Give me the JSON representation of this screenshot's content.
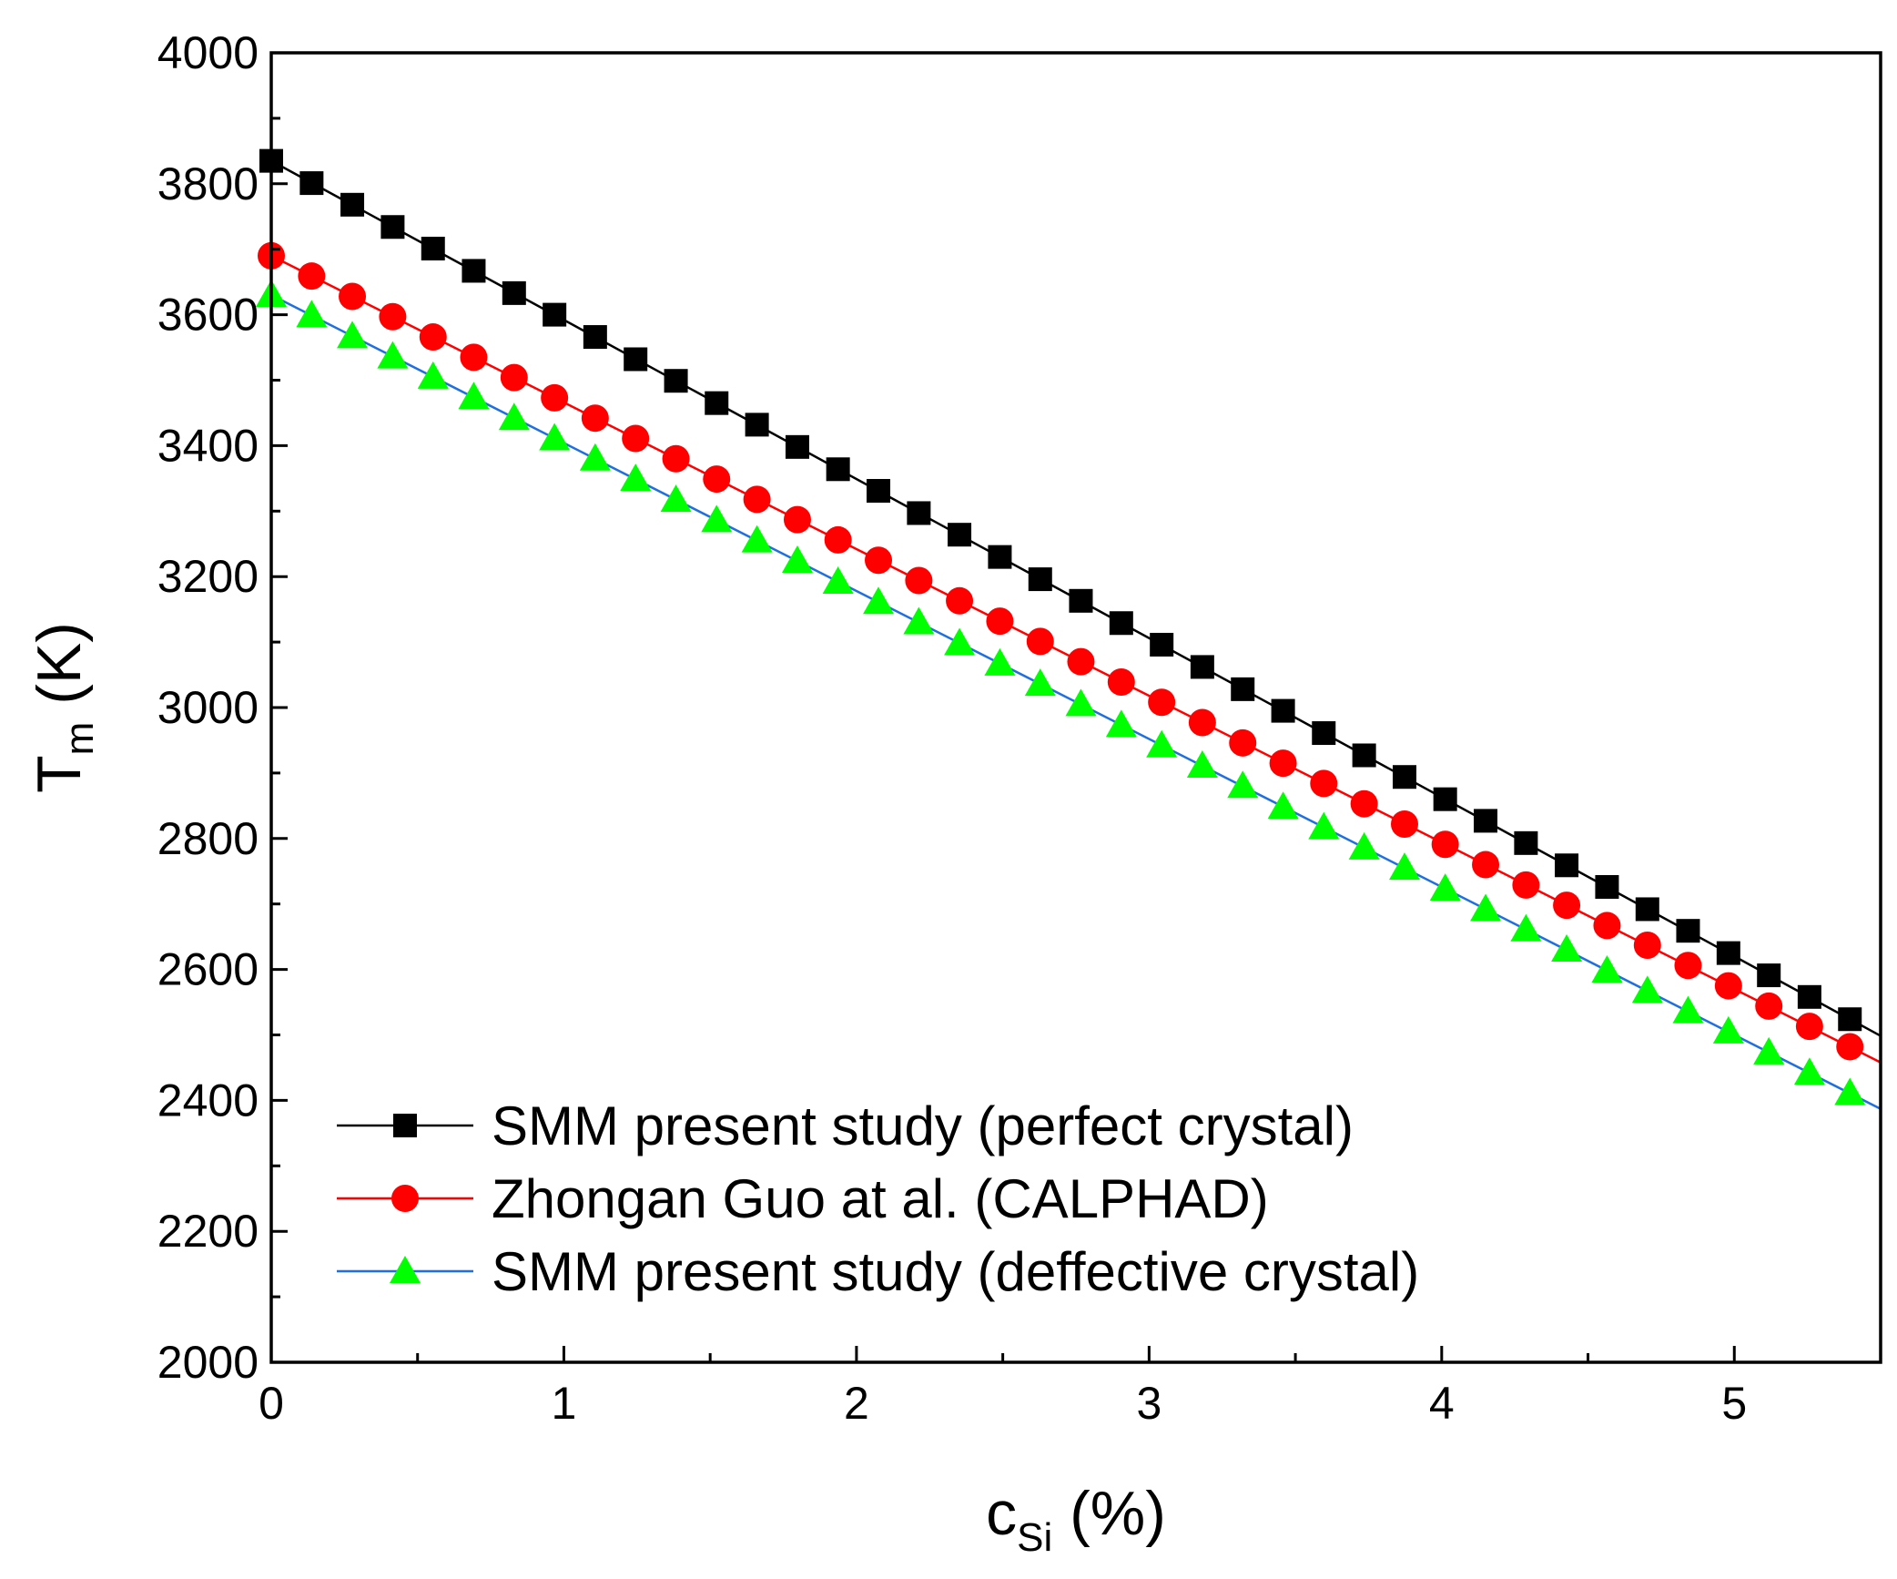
{
  "chart_data": {
    "type": "line",
    "title": "",
    "xlabel": {
      "main": "c",
      "sub": "Si",
      "unit": " (%)"
    },
    "ylabel": {
      "main": "T",
      "sub": "m",
      "unit": " (K)"
    },
    "xlim": [
      0,
      5.5
    ],
    "ylim": [
      2000,
      4000
    ],
    "xticks": [
      0,
      1,
      2,
      3,
      4,
      5
    ],
    "xtick_labels": [
      "0",
      "1",
      "2",
      "3",
      "4",
      "5"
    ],
    "yticks": [
      2000,
      2200,
      2400,
      2600,
      2800,
      3000,
      3200,
      3400,
      3600,
      3800,
      4000
    ],
    "ytick_labels": [
      "2000",
      "2200",
      "2400",
      "2600",
      "2800",
      "3000",
      "3200",
      "3400",
      "3600",
      "3800",
      "4000"
    ],
    "grid": false,
    "legend_position": "bottom-left",
    "series": [
      {
        "name": "SMM present study (perfect crystal)",
        "marker": "square",
        "marker_color": "#000000",
        "line_color": "#000000",
        "line_start": 3835,
        "line_slope": -243,
        "x": [
          0,
          0.138,
          0.277,
          0.415,
          0.553,
          0.692,
          0.83,
          0.968,
          1.107,
          1.245,
          1.383,
          1.522,
          1.66,
          1.798,
          1.937,
          2.075,
          2.213,
          2.352,
          2.49,
          2.628,
          2.767,
          2.905,
          3.043,
          3.182,
          3.32,
          3.458,
          3.597,
          3.735,
          3.873,
          4.012,
          4.15,
          4.288,
          4.427,
          4.565,
          4.703,
          4.842,
          4.98,
          5.118,
          5.257,
          5.395
        ],
        "y": [
          3835,
          3801,
          3768,
          3734,
          3701,
          3667,
          3633,
          3600,
          3566,
          3532,
          3499,
          3465,
          3432,
          3398,
          3364,
          3331,
          3297,
          3264,
          3230,
          3196,
          3163,
          3129,
          3096,
          3062,
          3028,
          2995,
          2961,
          2927,
          2894,
          2860,
          2827,
          2793,
          2759,
          2726,
          2692,
          2659,
          2625,
          2591,
          2558,
          2524
        ]
      },
      {
        "name": "Zhongan Guo at al. (CALPHAD)",
        "marker": "circle",
        "marker_color": "#ff0000",
        "line_color": "#ff0000",
        "line_start": 3690,
        "line_slope": -224,
        "x": [
          0,
          0.138,
          0.277,
          0.415,
          0.553,
          0.692,
          0.83,
          0.968,
          1.107,
          1.245,
          1.383,
          1.522,
          1.66,
          1.798,
          1.937,
          2.075,
          2.213,
          2.352,
          2.49,
          2.628,
          2.767,
          2.905,
          3.043,
          3.182,
          3.32,
          3.458,
          3.597,
          3.735,
          3.873,
          4.012,
          4.15,
          4.288,
          4.427,
          4.565,
          4.703,
          4.842,
          4.98,
          5.118,
          5.257,
          5.395
        ],
        "y": [
          3690,
          3659,
          3628,
          3597,
          3566,
          3535,
          3504,
          3473,
          3442,
          3411,
          3380,
          3349,
          3318,
          3287,
          3256,
          3225,
          3194,
          3163,
          3132,
          3101,
          3070,
          3039,
          3008,
          2977,
          2946,
          2915,
          2884,
          2853,
          2822,
          2791,
          2760,
          2729,
          2698,
          2667,
          2637,
          2606,
          2575,
          2544,
          2513,
          2482
        ]
      },
      {
        "name": "SMM present study (deffective crystal)",
        "marker": "triangle",
        "marker_color": "#00ff00",
        "line_color": "#1f6fe0",
        "line_start": 3630,
        "line_slope": -226,
        "x": [
          0,
          0.138,
          0.277,
          0.415,
          0.553,
          0.692,
          0.83,
          0.968,
          1.107,
          1.245,
          1.383,
          1.522,
          1.66,
          1.798,
          1.937,
          2.075,
          2.213,
          2.352,
          2.49,
          2.628,
          2.767,
          2.905,
          3.043,
          3.182,
          3.32,
          3.458,
          3.597,
          3.735,
          3.873,
          4.012,
          4.15,
          4.288,
          4.427,
          4.565,
          4.703,
          4.842,
          4.98,
          5.118,
          5.257,
          5.395
        ],
        "y": [
          3630,
          3599,
          3567,
          3536,
          3505,
          3474,
          3442,
          3411,
          3380,
          3349,
          3317,
          3286,
          3255,
          3224,
          3192,
          3161,
          3130,
          3098,
          3067,
          3036,
          3005,
          2973,
          2942,
          2911,
          2880,
          2848,
          2817,
          2786,
          2755,
          2723,
          2692,
          2661,
          2630,
          2598,
          2567,
          2536,
          2505,
          2473,
          2442,
          2411
        ]
      }
    ]
  }
}
